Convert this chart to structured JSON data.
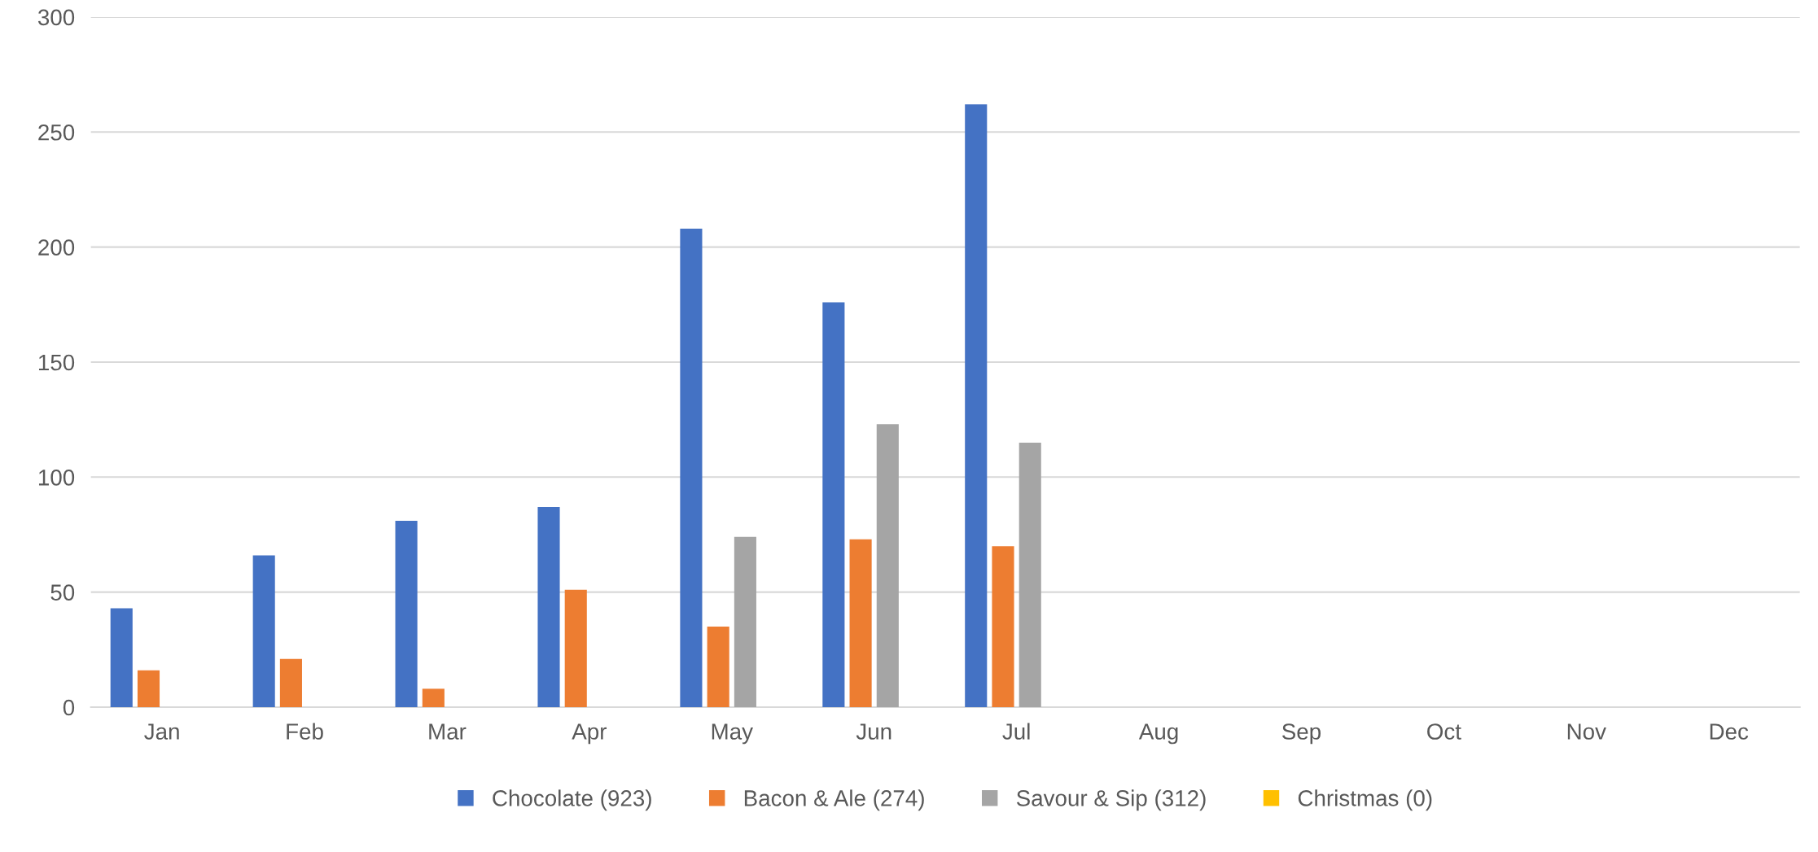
{
  "chart_data": {
    "type": "bar",
    "categories": [
      "Jan",
      "Feb",
      "Mar",
      "Apr",
      "May",
      "Jun",
      "Jul",
      "Aug",
      "Sep",
      "Oct",
      "Nov",
      "Dec"
    ],
    "series": [
      {
        "name": "Chocolate (923)",
        "color": "#4472c4",
        "values": [
          43,
          66,
          81,
          87,
          208,
          176,
          262,
          null,
          null,
          null,
          null,
          null
        ]
      },
      {
        "name": "Bacon & Ale (274)",
        "color": "#ed7d31",
        "values": [
          16,
          21,
          8,
          51,
          35,
          73,
          70,
          null,
          null,
          null,
          null,
          null
        ]
      },
      {
        "name": "Savour & Sip (312)",
        "color": "#a5a5a5",
        "values": [
          0,
          0,
          0,
          0,
          74,
          123,
          115,
          null,
          null,
          null,
          null,
          null
        ]
      },
      {
        "name": "Christmas (0)",
        "color": "#ffc000",
        "values": [
          0,
          0,
          0,
          0,
          0,
          0,
          0,
          null,
          null,
          null,
          null,
          null
        ]
      }
    ],
    "ylim": [
      0,
      300
    ],
    "yticks": [
      0,
      50,
      100,
      150,
      200,
      250,
      300
    ],
    "grid": "y",
    "legend": "bottom"
  }
}
